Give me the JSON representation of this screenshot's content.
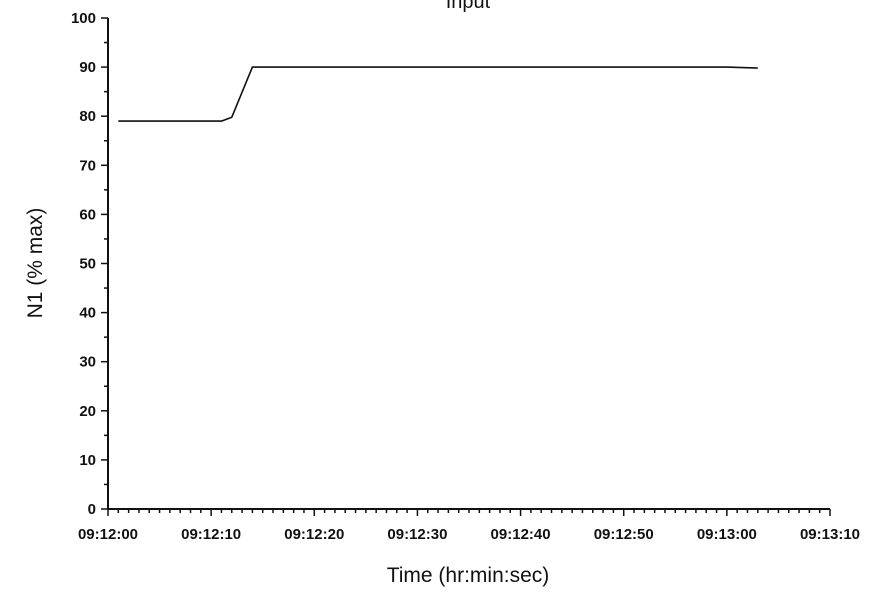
{
  "chart_data": {
    "type": "line",
    "title": "Input",
    "xlabel": "Time (hr:min:sec)",
    "ylabel": "N1 (% max)",
    "xlim": [
      "09:12:00",
      "09:13:10"
    ],
    "ylim": [
      0,
      100
    ],
    "x_ticks": [
      "09:12:00",
      "09:12:10",
      "09:12:20",
      "09:12:30",
      "09:12:40",
      "09:12:50",
      "09:13:00",
      "09:13:10"
    ],
    "y_ticks": [
      0,
      10,
      20,
      30,
      40,
      50,
      60,
      70,
      80,
      90,
      100
    ],
    "grid": false,
    "legend": "none",
    "line_color": "#111111",
    "series": [
      {
        "x": [
          "09:12:01",
          "09:12:11",
          "09:12:12",
          "09:12:14",
          "09:12:20",
          "09:12:40",
          "09:13:00",
          "09:13:03"
        ],
        "y": [
          79,
          79,
          79.8,
          90,
          90,
          90,
          90,
          89.8
        ]
      }
    ]
  }
}
